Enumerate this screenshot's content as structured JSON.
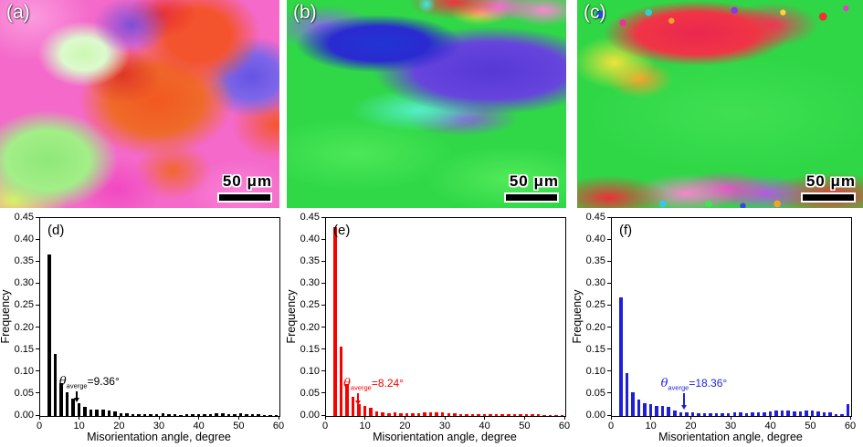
{
  "panels": [
    {
      "label": "(a)",
      "scale_text": "50 μm"
    },
    {
      "label": "(b)",
      "scale_text": "50 μm"
    },
    {
      "label": "(c)",
      "scale_text": "50 μm"
    }
  ],
  "chart_data": [
    {
      "type": "bar",
      "panel_label": "(d)",
      "color": "#000000",
      "xlabel": "Misorientation angle, degree",
      "ylabel": "Frequency",
      "xlim": [
        0,
        60
      ],
      "ylim": [
        0,
        0.45
      ],
      "grid": false,
      "xticks": [
        0,
        10,
        20,
        30,
        40,
        50,
        60
      ],
      "yticks": [
        "0.00",
        "0.05",
        "0.10",
        "0.15",
        "0.20",
        "0.25",
        "0.30",
        "0.35",
        "0.40",
        "0.45"
      ],
      "x_first_center": 2.25,
      "bin_width": 1.5,
      "values": [
        0.368,
        0.141,
        0.075,
        0.054,
        0.04,
        0.029,
        0.021,
        0.015,
        0.015,
        0.014,
        0.013,
        0.01,
        0.007,
        0.006,
        0.005,
        0.004,
        0.004,
        0.004,
        0.005,
        0.006,
        0.004,
        0.004,
        0.003,
        0.004,
        0.004,
        0.004,
        0.004,
        0.005,
        0.006,
        0.006,
        0.005,
        0.005,
        0.006,
        0.004,
        0.004,
        0.004,
        0.003,
        0.003,
        0.002
      ],
      "annotation": {
        "theta": "θ",
        "subscript": "averge",
        "value_text": "=9.36°",
        "arrow_x": 9.36,
        "text_x": 5.0,
        "text_y": 0.062,
        "arrow_top": 0.054,
        "arrow_tip": 0.028
      }
    },
    {
      "type": "bar",
      "panel_label": "(e)",
      "color": "#f80000",
      "xlabel": "Misorientation angle, degree",
      "ylabel": "Frequency",
      "xlim": [
        0,
        60
      ],
      "ylim": [
        0,
        0.45
      ],
      "grid": false,
      "xticks": [
        0,
        10,
        20,
        30,
        40,
        50,
        60
      ],
      "yticks": [
        "0.00",
        "0.05",
        "0.10",
        "0.15",
        "0.20",
        "0.25",
        "0.30",
        "0.35",
        "0.40",
        "0.45"
      ],
      "x_first_center": 2.25,
      "bin_width": 1.5,
      "values": [
        0.43,
        0.157,
        0.073,
        0.043,
        0.028,
        0.022,
        0.018,
        0.01,
        0.008,
        0.007,
        0.008,
        0.007,
        0.006,
        0.007,
        0.007,
        0.008,
        0.009,
        0.008,
        0.008,
        0.007,
        0.006,
        0.005,
        0.004,
        0.004,
        0.004,
        0.005,
        0.004,
        0.005,
        0.005,
        0.004,
        0.005,
        0.005,
        0.005,
        0.005,
        0.004,
        0.003,
        0.002,
        0.002,
        0.002
      ],
      "annotation": {
        "theta": "θ",
        "subscript": "averge",
        "value_text": "=8.24°",
        "arrow_x": 8.24,
        "text_x": 4.6,
        "text_y": 0.058,
        "arrow_top": 0.05,
        "arrow_tip": 0.022
      }
    },
    {
      "type": "bar",
      "panel_label": "(f)",
      "color": "#1e1edf",
      "xlabel": "Misorientation angle, degree",
      "ylabel": "Frequency",
      "xlim": [
        0,
        60
      ],
      "ylim": [
        0,
        0.45
      ],
      "grid": false,
      "xticks": [
        0,
        10,
        20,
        30,
        40,
        50,
        60
      ],
      "yticks": [
        "0.00",
        "0.05",
        "0.10",
        "0.15",
        "0.20",
        "0.25",
        "0.30",
        "0.35",
        "0.40",
        "0.45"
      ],
      "x_first_center": 2.25,
      "bin_width": 1.5,
      "values": [
        0.27,
        0.098,
        0.053,
        0.037,
        0.03,
        0.027,
        0.023,
        0.022,
        0.02,
        0.012,
        0.009,
        0.008,
        0.008,
        0.007,
        0.007,
        0.006,
        0.007,
        0.006,
        0.007,
        0.008,
        0.008,
        0.007,
        0.008,
        0.008,
        0.009,
        0.01,
        0.013,
        0.012,
        0.013,
        0.011,
        0.01,
        0.012,
        0.012,
        0.011,
        0.009,
        0.008,
        0.005,
        0.004,
        0.027
      ],
      "annotation": {
        "theta": "θ",
        "subscript": "averge",
        "value_text": "=18.36°",
        "arrow_x": 18.36,
        "text_x": 12.5,
        "text_y": 0.058,
        "arrow_top": 0.05,
        "arrow_tip": 0.013
      }
    }
  ]
}
